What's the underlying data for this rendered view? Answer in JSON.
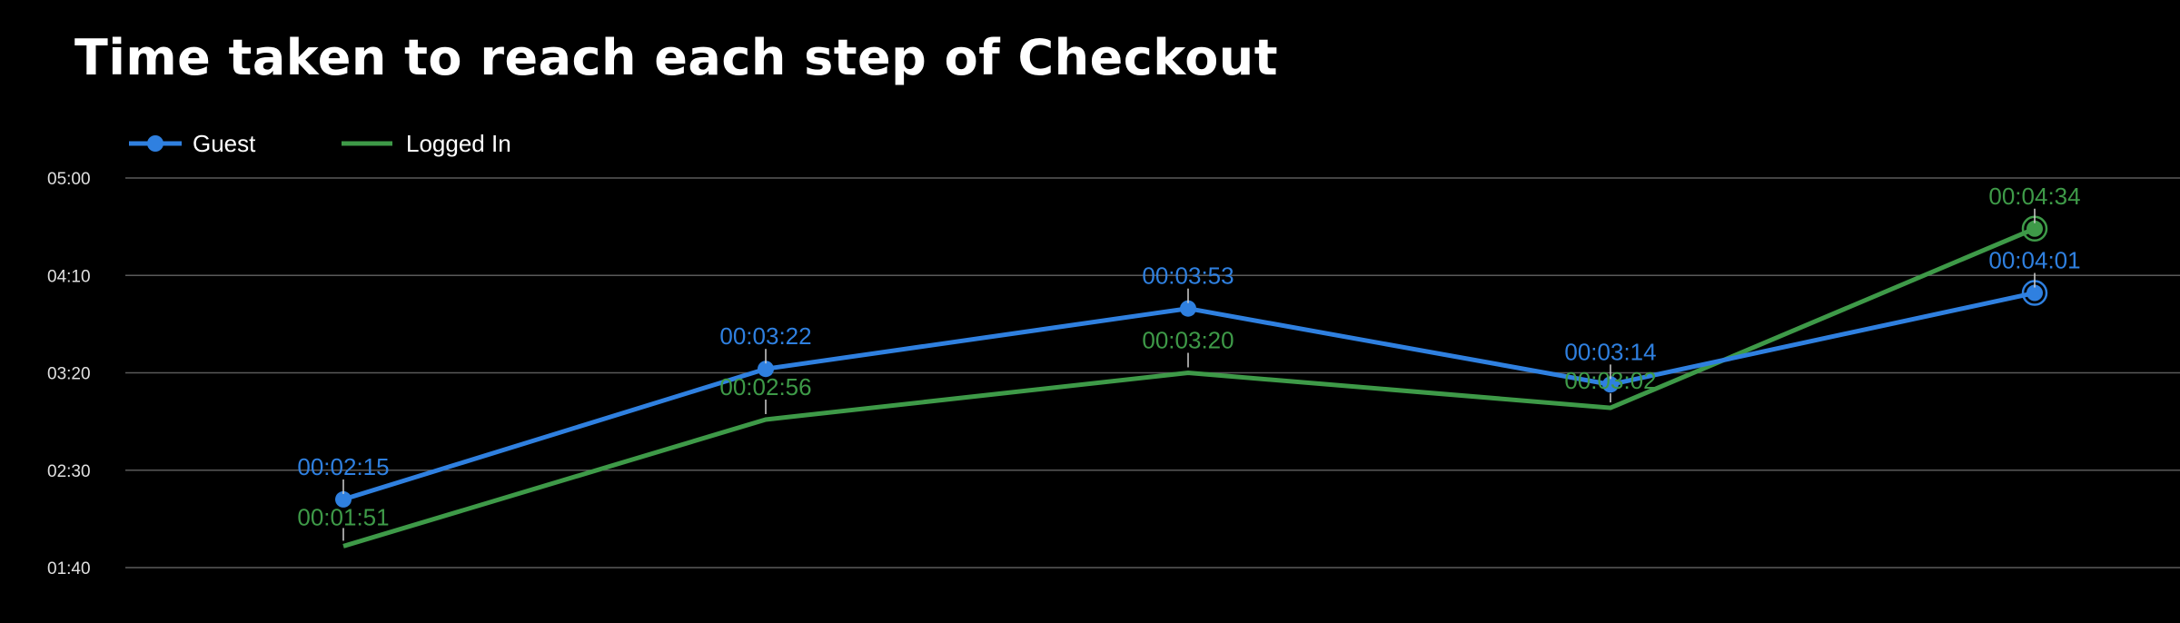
{
  "chart_data": {
    "type": "line",
    "title": "Time taken to reach each step of Checkout",
    "xlabel": "",
    "ylabel": "",
    "ylim_seconds": [
      100,
      300
    ],
    "y_ticks": [
      {
        "label": "05:00",
        "seconds": 300
      },
      {
        "label": "04:10",
        "seconds": 250
      },
      {
        "label": "03:20",
        "seconds": 200
      },
      {
        "label": "02:30",
        "seconds": 150
      },
      {
        "label": "01:40",
        "seconds": 100
      }
    ],
    "grid": true,
    "legend": "top-left",
    "series": [
      {
        "name": "Guest",
        "color": "#2f80e0",
        "markers": true,
        "labels": [
          "00:02:15",
          "00:03:22",
          "00:03:53",
          "00:03:14",
          "00:04:01"
        ],
        "values": [
          135,
          202,
          233,
          194,
          241
        ]
      },
      {
        "name": "Logged In",
        "color": "#3e9a48",
        "markers": false,
        "labels": [
          "00:01:51",
          "00:02:56",
          "00:03:20",
          "00:03:02",
          "00:04:34"
        ],
        "values": [
          111,
          176,
          200,
          182,
          274
        ]
      }
    ]
  }
}
